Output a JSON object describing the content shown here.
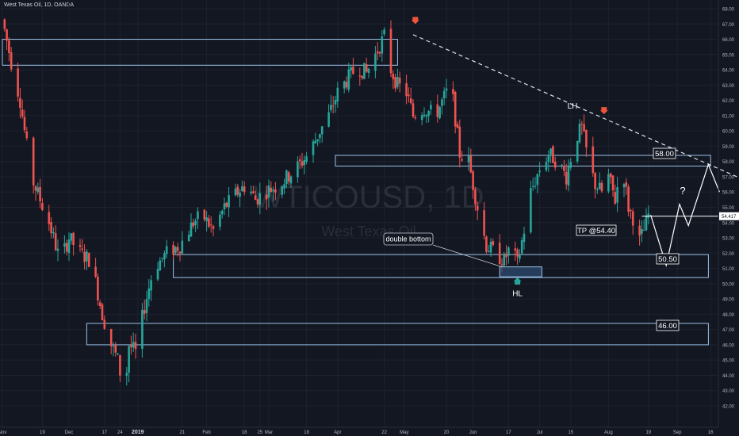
{
  "header": {
    "symbol_title": "West Texas Oil, 1D, OANDA"
  },
  "watermark": {
    "ticker": "WTICOUSD, 1D",
    "name": "West Texas Oil"
  },
  "colors": {
    "background": "#131722",
    "up": "#26a69a",
    "down": "#ef5350",
    "zone_border": "#9bc1e6",
    "price_line": "#ffffff",
    "marker_red": "#f0553c",
    "marker_green": "#26a69a"
  },
  "chart_data": {
    "type": "candlestick",
    "ylim": [
      41.5,
      69.5
    ],
    "y_ticks": [
      42,
      43,
      44,
      45,
      46,
      47,
      48,
      49,
      50,
      51,
      52,
      53,
      54,
      55,
      56,
      57,
      58,
      59,
      60,
      61,
      62,
      63,
      64,
      65,
      66,
      67,
      68,
      69
    ],
    "x_ticks": [
      {
        "label": "Nov",
        "day": 0
      },
      {
        "label": "19",
        "day": 18
      },
      {
        "label": "Dec",
        "day": 30
      },
      {
        "label": "17",
        "day": 46
      },
      {
        "label": "24",
        "day": 53
      },
      {
        "label": "2019",
        "day": 61
      },
      {
        "label": "21",
        "day": 81
      },
      {
        "label": "Feb",
        "day": 92
      },
      {
        "label": "18",
        "day": 109
      },
      {
        "label": "25",
        "day": 116
      },
      {
        "label": "Mar",
        "day": 120
      },
      {
        "label": "18",
        "day": 137
      },
      {
        "label": "Apr",
        "day": 151
      },
      {
        "label": "22",
        "day": 172
      },
      {
        "label": "May",
        "day": 181
      },
      {
        "label": "20",
        "day": 200
      },
      {
        "label": "Jun",
        "day": 212
      },
      {
        "label": "17",
        "day": 228
      },
      {
        "label": "Jul",
        "day": 242
      },
      {
        "label": "15",
        "day": 256
      },
      {
        "label": "Aug",
        "day": 273
      },
      {
        "label": "19",
        "day": 291
      },
      {
        "label": "Sep",
        "day": 304
      },
      {
        "label": "16",
        "day": 319
      }
    ],
    "anchors": [
      {
        "day": 0,
        "price": 67.3
      },
      {
        "day": 4,
        "price": 64.5
      },
      {
        "day": 8,
        "price": 62.0
      },
      {
        "day": 13,
        "price": 57.0
      },
      {
        "day": 17,
        "price": 55.5
      },
      {
        "day": 21,
        "price": 54.0
      },
      {
        "day": 26,
        "price": 51.5
      },
      {
        "day": 30,
        "price": 53.0
      },
      {
        "day": 35,
        "price": 52.0
      },
      {
        "day": 40,
        "price": 51.5
      },
      {
        "day": 45,
        "price": 48.0
      },
      {
        "day": 49,
        "price": 46.0
      },
      {
        "day": 52,
        "price": 45.0
      },
      {
        "day": 55,
        "price": 42.6
      },
      {
        "day": 57,
        "price": 46.0
      },
      {
        "day": 60,
        "price": 45.5
      },
      {
        "day": 64,
        "price": 48.5
      },
      {
        "day": 68,
        "price": 51.0
      },
      {
        "day": 74,
        "price": 52.0
      },
      {
        "day": 80,
        "price": 52.5
      },
      {
        "day": 86,
        "price": 54.0
      },
      {
        "day": 90,
        "price": 54.5
      },
      {
        "day": 95,
        "price": 53.5
      },
      {
        "day": 100,
        "price": 55.0
      },
      {
        "day": 106,
        "price": 56.0
      },
      {
        "day": 110,
        "price": 56.5
      },
      {
        "day": 114,
        "price": 55.5
      },
      {
        "day": 118,
        "price": 56.0
      },
      {
        "day": 125,
        "price": 56.5
      },
      {
        "day": 132,
        "price": 57.5
      },
      {
        "day": 138,
        "price": 58.5
      },
      {
        "day": 143,
        "price": 60.0
      },
      {
        "day": 147,
        "price": 61.0
      },
      {
        "day": 151,
        "price": 62.5
      },
      {
        "day": 156,
        "price": 63.5
      },
      {
        "day": 160,
        "price": 64.2
      },
      {
        "day": 164,
        "price": 63.8
      },
      {
        "day": 168,
        "price": 65.0
      },
      {
        "day": 172,
        "price": 66.2
      },
      {
        "day": 175,
        "price": 64.0
      },
      {
        "day": 178,
        "price": 63.0
      },
      {
        "day": 182,
        "price": 62.5
      },
      {
        "day": 185,
        "price": 61.0
      },
      {
        "day": 190,
        "price": 61.5
      },
      {
        "day": 195,
        "price": 61.0
      },
      {
        "day": 200,
        "price": 62.5
      },
      {
        "day": 203,
        "price": 62.0
      },
      {
        "day": 206,
        "price": 58.5
      },
      {
        "day": 210,
        "price": 58.0
      },
      {
        "day": 214,
        "price": 55.0
      },
      {
        "day": 218,
        "price": 52.5
      },
      {
        "day": 222,
        "price": 52.0
      },
      {
        "day": 226,
        "price": 51.5
      },
      {
        "day": 229,
        "price": 52.5
      },
      {
        "day": 232,
        "price": 51.3
      },
      {
        "day": 235,
        "price": 53.5
      },
      {
        "day": 238,
        "price": 56.0
      },
      {
        "day": 242,
        "price": 57.5
      },
      {
        "day": 246,
        "price": 58.5
      },
      {
        "day": 250,
        "price": 58.0
      },
      {
        "day": 254,
        "price": 57.0
      },
      {
        "day": 258,
        "price": 59.5
      },
      {
        "day": 261,
        "price": 60.2
      },
      {
        "day": 264,
        "price": 58.0
      },
      {
        "day": 267,
        "price": 56.5
      },
      {
        "day": 270,
        "price": 56.0
      },
      {
        "day": 273,
        "price": 57.0
      },
      {
        "day": 276,
        "price": 55.5
      },
      {
        "day": 279,
        "price": 58.0
      },
      {
        "day": 282,
        "price": 55.0
      },
      {
        "day": 285,
        "price": 54.0
      },
      {
        "day": 287,
        "price": 52.8
      },
      {
        "day": 289,
        "price": 53.5
      },
      {
        "day": 291,
        "price": 54.5
      }
    ],
    "zones": [
      {
        "day0": 0,
        "day1": 178,
        "low": 64.3,
        "high": 66.0
      },
      {
        "day0": 150,
        "day1": 319,
        "low": 57.7,
        "high": 58.4
      },
      {
        "day0": 77,
        "day1": 318,
        "low": 50.4,
        "high": 51.9
      },
      {
        "day0": 38,
        "day1": 318,
        "low": 46.0,
        "high": 47.4
      }
    ],
    "double_bottom_box": {
      "day0": 224,
      "day1": 243,
      "low": 50.45,
      "high": 51.1
    },
    "trendline": {
      "day0": 185,
      "price0": 66.3,
      "day1": 334,
      "price1": 56.8
    },
    "current_price": {
      "value": 54.417,
      "label": "54.417",
      "day0": 288
    },
    "projection": [
      {
        "day": 292,
        "price": 54.5
      },
      {
        "day": 299,
        "price": 51.2
      },
      {
        "day": 305,
        "price": 55.2
      },
      {
        "day": 309,
        "price": 53.8
      },
      {
        "day": 318,
        "price": 57.8
      },
      {
        "day": 323,
        "price": 56.0
      }
    ],
    "annotations": {
      "lh": "LH",
      "hl": "HL",
      "double_bottom": "double bottom",
      "tp": "TP @54.40",
      "level_58": "58.00",
      "level_50": "50.50",
      "level_46": "46.00",
      "question": "?"
    },
    "markers": [
      {
        "day": 186,
        "price": 67.2,
        "dir": "down",
        "color": "red"
      },
      {
        "day": 271,
        "price": 61.3,
        "dir": "down",
        "color": "red"
      },
      {
        "day": 232,
        "price": 50.2,
        "dir": "up",
        "color": "green"
      }
    ]
  }
}
